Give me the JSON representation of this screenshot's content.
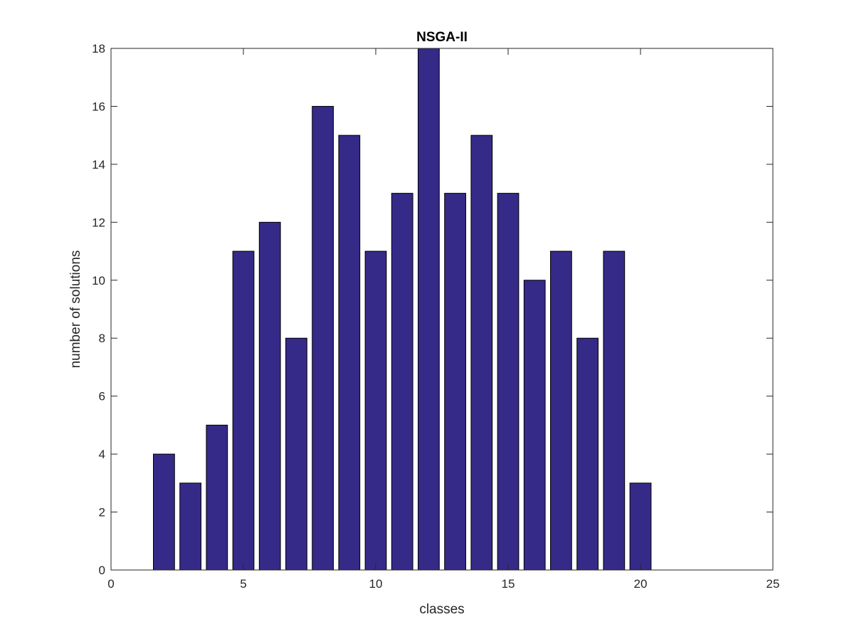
{
  "chart_data": {
    "type": "bar",
    "title": "NSGA-II",
    "xlabel": "classes",
    "ylabel": "number of solutions",
    "x": [
      2,
      3,
      4,
      5,
      6,
      7,
      8,
      9,
      10,
      11,
      12,
      13,
      14,
      15,
      16,
      17,
      18,
      19,
      20
    ],
    "values": [
      4,
      3,
      5,
      11,
      12,
      8,
      16,
      15,
      11,
      13,
      18,
      13,
      15,
      13,
      10,
      11,
      8,
      11,
      3
    ],
    "xlim": [
      0,
      25
    ],
    "ylim": [
      0,
      18
    ],
    "xticks": [
      "0",
      "5",
      "10",
      "15",
      "20",
      "25"
    ],
    "yticks": [
      "0",
      "2",
      "4",
      "6",
      "8",
      "10",
      "12",
      "14",
      "16",
      "18"
    ],
    "grid": false,
    "legend": "none",
    "colors": {
      "bar_fill": "#352a87",
      "bar_edge": "#000000",
      "axes": "#262626",
      "background": "#ffffff"
    }
  }
}
